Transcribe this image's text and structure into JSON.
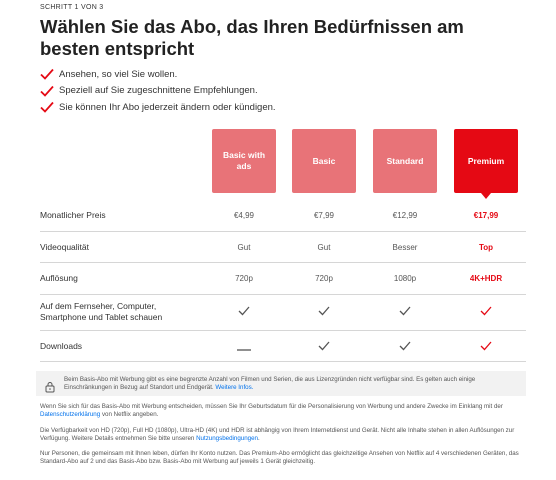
{
  "header": {
    "step": "SCHRITT 1 VON 3",
    "title": "Wählen Sie das Abo, das Ihren Bedürfnissen am besten entspricht"
  },
  "benefits": [
    "Ansehen, so viel Sie wollen.",
    "Speziell auf Sie zugeschnittene Empfehlungen.",
    "Sie können Ihr Abo jederzeit ändern oder kündigen."
  ],
  "plans": [
    {
      "name": "Basic with ads",
      "selected": false
    },
    {
      "name": "Basic",
      "selected": false
    },
    {
      "name": "Standard",
      "selected": false
    },
    {
      "name": "Premium",
      "selected": true
    }
  ],
  "rows": {
    "price": {
      "label": "Monatlicher Preis",
      "values": [
        "€4,99",
        "€7,99",
        "€12,99",
        "€17,99"
      ]
    },
    "quality": {
      "label": "Videoqualität",
      "values": [
        "Gut",
        "Gut",
        "Besser",
        "Top"
      ]
    },
    "resolution": {
      "label": "Auflösung",
      "values": [
        "720p",
        "720p",
        "1080p",
        "4K+HDR"
      ]
    },
    "devices": {
      "label": "Auf dem Fernseher, Computer, Smartphone und Tablet schauen",
      "values": [
        true,
        true,
        true,
        true
      ]
    },
    "downloads": {
      "label": "Downloads",
      "values": [
        false,
        true,
        true,
        true
      ]
    }
  },
  "notice": {
    "text": "Beim Basis-Abo mit Werbung gibt es eine begrenzte Anzahl von Filmen und Serien, die aus Lizenzgründen nicht verfügbar sind. Es gelten auch einige Einschränkungen in Bezug auf Standort und Endgerät.",
    "link": "Weitere Infos."
  },
  "fineprint": {
    "p1_text": "Wenn Sie sich für das Basis-Abo mit Werbung entscheiden, müssen Sie Ihr Geburtsdatum für die Personalisierung von Werbung und andere Zwecke im Einklang mit der",
    "p1_link": "Datenschutzerklärung",
    "p1_tail": "von Netflix angeben.",
    "p2_text": "Die Verfügbarkeit von HD (720p), Full HD (1080p), Ultra-HD (4K) und HDR ist abhängig von Ihrem Internetdienst und Gerät. Nicht alle Inhalte stehen in allen Auflösungen zur Verfügung. Weitere Details entnehmen Sie bitte unseren",
    "p2_link": "Nutzungsbedingungen",
    "p2_tail": ".",
    "p3_text": "Nur Personen, die gemeinsam mit Ihnen leben, dürfen Ihr Konto nutzen. Das Premium-Abo ermöglicht das gleichzeitige Ansehen von Netflix auf 4 verschiedenen Geräten, das Standard-Abo auf 2 und das Basis-Abo bzw. Basis-Abo mit Werbung auf jeweils 1 Gerät gleichzeitig."
  },
  "colors": {
    "brand_red": "#e50914",
    "plan_unselected": "#e87378",
    "link_blue": "#0071eb"
  }
}
